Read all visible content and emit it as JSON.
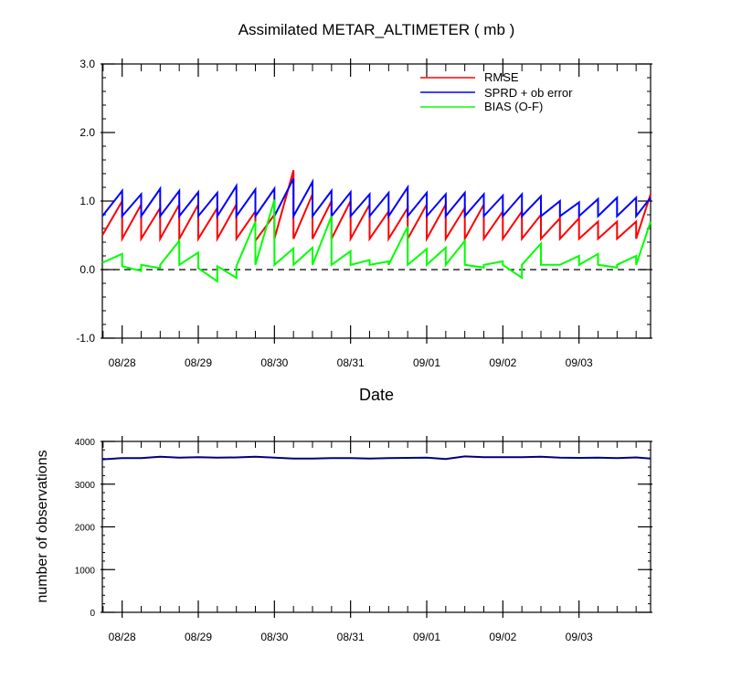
{
  "colors": {
    "rmse": "#ff0000",
    "sprd": "#0000ff",
    "bias": "#00ff00",
    "zero_line": "#000000",
    "obs_count": "#000080"
  },
  "chart_data": [
    {
      "type": "line",
      "title": "Assimilated METAR_ALTIMETER ( mb )",
      "xlabel": "Date",
      "ylabel": "",
      "x_ticks": [
        "08/28",
        "08/29",
        "08/30",
        "08/31",
        "09/01",
        "09/02",
        "09/03"
      ],
      "x_tick_positions": [
        0.5,
        1.5,
        2.5,
        3.5,
        4.5,
        5.5,
        6.5
      ],
      "xlim": [
        0.24,
        7.44
      ],
      "ylim": [
        -1.0,
        3.0
      ],
      "y_ticks": [
        "-1.0",
        "0.0",
        "1.0",
        "2.0",
        "3.0"
      ],
      "y_tick_values": [
        -1.0,
        0.0,
        1.0,
        2.0,
        3.0
      ],
      "legend_position": "top-right",
      "zero_line": "dashed",
      "series": [
        {
          "name": "RMSE",
          "color_key": "rmse",
          "x": [
            0.24,
            0.5,
            0.5,
            0.75,
            0.75,
            1.0,
            1.0,
            1.25,
            1.25,
            1.5,
            1.5,
            1.75,
            1.75,
            2.0,
            2.0,
            2.25,
            2.25,
            2.5,
            2.5,
            2.75,
            2.75,
            3.0,
            3.0,
            3.25,
            3.25,
            3.5,
            3.5,
            3.75,
            3.75,
            4.0,
            4.0,
            4.25,
            4.25,
            4.5,
            4.5,
            4.75,
            4.75,
            5.0,
            5.0,
            5.25,
            5.25,
            5.5,
            5.5,
            5.75,
            5.75,
            6.0,
            6.0,
            6.25,
            6.25,
            6.5,
            6.5,
            6.75,
            6.75,
            7.0,
            7.0,
            7.25,
            7.25,
            7.44
          ],
          "values": [
            0.5,
            1.0,
            0.45,
            0.95,
            0.45,
            0.9,
            0.45,
            0.95,
            0.45,
            0.95,
            0.45,
            0.9,
            0.45,
            0.95,
            0.45,
            0.85,
            0.42,
            0.8,
            0.45,
            1.45,
            0.45,
            1.1,
            0.45,
            1.0,
            0.45,
            1.0,
            0.45,
            0.95,
            0.45,
            0.85,
            0.45,
            0.9,
            0.45,
            0.95,
            0.45,
            0.95,
            0.45,
            0.9,
            0.45,
            0.95,
            0.45,
            0.85,
            0.45,
            0.85,
            0.45,
            0.8,
            0.45,
            0.75,
            0.45,
            0.75,
            0.45,
            0.7,
            0.45,
            0.7,
            0.45,
            0.7,
            0.45,
            1.1
          ]
        },
        {
          "name": "SPRD + ob error",
          "color_key": "sprd",
          "x": [
            0.24,
            0.5,
            0.5,
            0.75,
            0.75,
            1.0,
            1.0,
            1.25,
            1.25,
            1.5,
            1.5,
            1.75,
            1.75,
            2.0,
            2.0,
            2.25,
            2.25,
            2.5,
            2.5,
            2.75,
            2.75,
            3.0,
            3.0,
            3.25,
            3.25,
            3.5,
            3.5,
            3.75,
            3.75,
            4.0,
            4.0,
            4.25,
            4.25,
            4.5,
            4.5,
            4.75,
            4.75,
            5.0,
            5.0,
            5.25,
            5.25,
            5.5,
            5.5,
            5.75,
            5.75,
            6.0,
            6.0,
            6.25,
            6.25,
            6.5,
            6.5,
            6.75,
            6.75,
            7.0,
            7.0,
            7.25,
            7.25,
            7.44
          ],
          "values": [
            0.78,
            1.15,
            0.78,
            1.1,
            0.78,
            1.18,
            0.78,
            1.15,
            0.78,
            1.13,
            0.78,
            1.12,
            0.78,
            1.22,
            0.78,
            1.17,
            0.78,
            1.18,
            0.78,
            1.33,
            0.78,
            1.28,
            0.78,
            1.15,
            0.78,
            1.13,
            0.78,
            1.1,
            0.78,
            1.12,
            0.78,
            1.2,
            0.78,
            1.12,
            0.78,
            1.1,
            0.78,
            1.12,
            0.78,
            1.1,
            0.78,
            1.08,
            0.78,
            1.1,
            0.78,
            1.07,
            0.78,
            1.0,
            0.78,
            0.98,
            0.78,
            1.03,
            0.78,
            1.05,
            0.78,
            1.05,
            0.78,
            1.05
          ]
        },
        {
          "name": "BIAS (O-F)",
          "color_key": "bias",
          "x": [
            0.24,
            0.5,
            0.5,
            0.75,
            0.75,
            1.0,
            1.0,
            1.25,
            1.25,
            1.5,
            1.5,
            1.75,
            1.75,
            2.0,
            2.0,
            2.25,
            2.25,
            2.5,
            2.5,
            2.75,
            2.75,
            3.0,
            3.0,
            3.25,
            3.25,
            3.5,
            3.5,
            3.75,
            3.75,
            4.0,
            4.0,
            4.25,
            4.25,
            4.5,
            4.5,
            4.75,
            4.75,
            5.0,
            5.0,
            5.25,
            5.25,
            5.5,
            5.5,
            5.75,
            5.75,
            6.0,
            6.0,
            6.25,
            6.25,
            6.5,
            6.5,
            6.75,
            6.75,
            7.0,
            7.0,
            7.25,
            7.25,
            7.44
          ],
          "values": [
            0.1,
            0.23,
            0.05,
            -0.02,
            0.07,
            0.02,
            0.07,
            0.42,
            0.07,
            0.25,
            0.02,
            -0.17,
            0.05,
            -0.12,
            0.05,
            0.7,
            0.07,
            1.02,
            0.07,
            0.31,
            0.07,
            0.32,
            0.07,
            0.78,
            0.07,
            0.27,
            0.07,
            0.14,
            0.07,
            0.12,
            0.07,
            0.63,
            0.07,
            0.3,
            0.07,
            0.32,
            0.07,
            0.42,
            0.07,
            0.03,
            0.07,
            0.12,
            0.07,
            -0.12,
            0.07,
            0.38,
            0.07,
            0.07,
            0.07,
            0.2,
            0.07,
            0.23,
            0.07,
            0.03,
            0.07,
            0.2,
            0.07,
            0.7
          ]
        }
      ]
    },
    {
      "type": "line",
      "title": "",
      "xlabel": "",
      "ylabel": "number of observations",
      "x_ticks": [
        "08/28",
        "08/29",
        "08/30",
        "08/31",
        "09/01",
        "09/02",
        "09/03"
      ],
      "x_tick_positions": [
        0.5,
        1.5,
        2.5,
        3.5,
        4.5,
        5.5,
        6.5
      ],
      "xlim": [
        0.24,
        7.44
      ],
      "ylim": [
        0,
        4000
      ],
      "y_ticks": [
        "0",
        "1000",
        "2000",
        "3000",
        "4000"
      ],
      "y_tick_values": [
        0,
        1000,
        2000,
        3000,
        4000
      ],
      "series": [
        {
          "color_key": "obs_count",
          "x": [
            0.24,
            0.5,
            0.75,
            1.0,
            1.25,
            1.5,
            1.75,
            2.0,
            2.25,
            2.5,
            2.75,
            3.0,
            3.25,
            3.5,
            3.75,
            4.0,
            4.25,
            4.5,
            4.75,
            5.0,
            5.25,
            5.5,
            5.75,
            6.0,
            6.25,
            6.5,
            6.75,
            7.0,
            7.25,
            7.44
          ],
          "values": [
            3580,
            3610,
            3610,
            3640,
            3620,
            3630,
            3620,
            3625,
            3640,
            3620,
            3600,
            3600,
            3610,
            3610,
            3600,
            3610,
            3615,
            3620,
            3590,
            3650,
            3630,
            3630,
            3630,
            3640,
            3620,
            3615,
            3620,
            3610,
            3625,
            3600
          ]
        }
      ]
    }
  ]
}
